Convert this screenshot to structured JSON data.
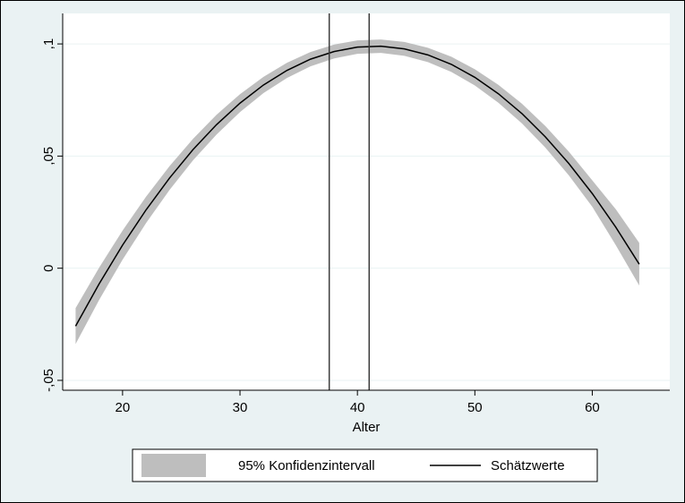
{
  "chart_data": {
    "type": "line",
    "xlabel": "Alter",
    "x": [
      16,
      18,
      20,
      22,
      24,
      26,
      28,
      30,
      32,
      34,
      36,
      38,
      40,
      42,
      44,
      46,
      48,
      50,
      52,
      54,
      56,
      58,
      60,
      62,
      64
    ],
    "series": [
      {
        "name": "95% Konfidenzintervall",
        "color": "#bebebe",
        "lower": [
          -0.0338,
          -0.0142,
          0.0038,
          0.0201,
          0.0349,
          0.0481,
          0.0596,
          0.0696,
          0.0781,
          0.0848,
          0.09,
          0.0935,
          0.0956,
          0.096,
          0.0947,
          0.0919,
          0.0875,
          0.0815,
          0.0738,
          0.0646,
          0.0538,
          0.0414,
          0.0274,
          0.0103,
          -0.0077
        ],
        "upper": [
          -0.0178,
          0.0002,
          0.0168,
          0.0319,
          0.0455,
          0.0577,
          0.0684,
          0.0776,
          0.0853,
          0.0916,
          0.0964,
          0.0997,
          0.1016,
          0.102,
          0.1009,
          0.0983,
          0.0943,
          0.0887,
          0.0818,
          0.0734,
          0.0634,
          0.052,
          0.0392,
          0.0263,
          0.0113
        ]
      },
      {
        "name": "Schätzwerte",
        "color": "#000000",
        "values": [
          -0.0258,
          -0.007,
          0.0103,
          0.026,
          0.0402,
          0.0529,
          0.064,
          0.0736,
          0.0817,
          0.0882,
          0.0932,
          0.0966,
          0.0986,
          0.099,
          0.0978,
          0.0951,
          0.0909,
          0.0851,
          0.0778,
          0.069,
          0.0586,
          0.0467,
          0.0333,
          0.0183,
          0.0018
        ]
      }
    ],
    "vlines": [
      37.6,
      41
    ],
    "xlim": [
      14.9,
      66.6
    ],
    "xticks": [
      20,
      30,
      40,
      50,
      60
    ],
    "ylim": [
      -0.0544,
      0.1136
    ],
    "yticks": [
      {
        "value": -0.05,
        "label": "-,05"
      },
      0,
      {
        "value": 0.05,
        "label": ",05"
      },
      {
        "value": 0.1,
        "label": ",1"
      }
    ],
    "grid": true
  }
}
